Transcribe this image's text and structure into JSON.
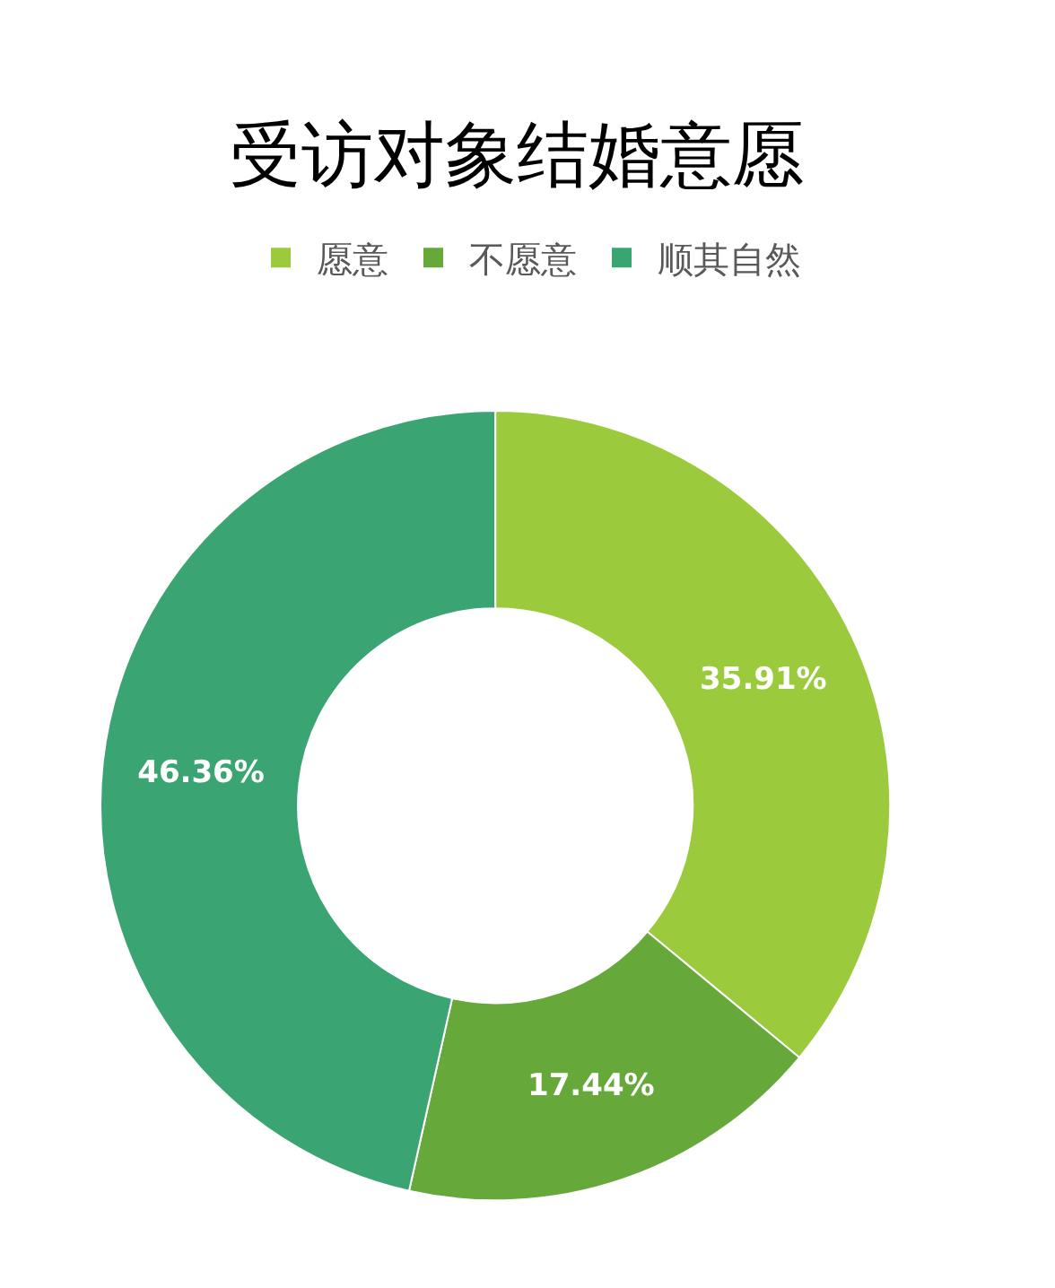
{
  "chart_data": {
    "type": "donut",
    "title": "受访对象结婚意愿",
    "categories": [
      "愿意",
      "不愿意",
      "顺其自然"
    ],
    "values": [
      35.91,
      17.44,
      46.36
    ],
    "value_labels": [
      "35.91%",
      "17.44%",
      "46.36%"
    ],
    "colors": [
      "#9bcb3c",
      "#67a83a",
      "#3aa573"
    ],
    "legend": "top"
  }
}
